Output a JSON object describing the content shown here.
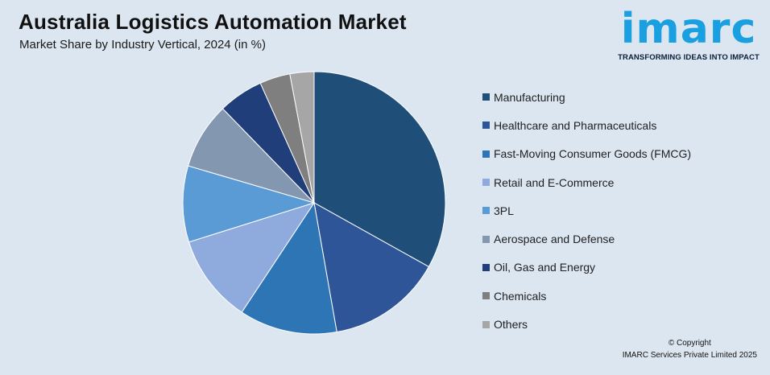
{
  "header": {
    "title": "Australia Logistics Automation Market",
    "subtitle": "Market Share by Industry Vertical, 2024 (in %)"
  },
  "logo": {
    "word": "imarc",
    "tagline": "TRANSFORMING IDEAS INTO IMPACT",
    "color": "#1aa0e0"
  },
  "chart_data": {
    "type": "pie",
    "title": "Australia Logistics Automation Market",
    "subtitle": "Market Share by Industry Vertical, 2024 (in %)",
    "legend_position": "right",
    "slices": [
      {
        "label": "Manufacturing",
        "value": 33.5,
        "color": "#1f4e79"
      },
      {
        "label": "Healthcare and Pharmaceuticals",
        "value": 14.3,
        "color": "#2e5597"
      },
      {
        "label": "Fast-Moving Consumer Goods (FMCG)",
        "value": 12.2,
        "color": "#2e75b6"
      },
      {
        "label": "Retail and E-Commerce",
        "value": 11.0,
        "color": "#8faadc"
      },
      {
        "label": "3PL",
        "value": 9.5,
        "color": "#5b9bd5"
      },
      {
        "label": "Aerospace and Defense",
        "value": 8.3,
        "color": "#8497b0"
      },
      {
        "label": "Oil, Gas and Energy",
        "value": 5.6,
        "color": "#203f7a"
      },
      {
        "label": "Chemicals",
        "value": 3.8,
        "color": "#7f7f7f"
      },
      {
        "label": "Others",
        "value": 3.0,
        "color": "#a6a6a6"
      }
    ]
  },
  "footer": {
    "copyright_line1": "© Copyright",
    "copyright_line2": "IMARC Services Private Limited 2025"
  }
}
